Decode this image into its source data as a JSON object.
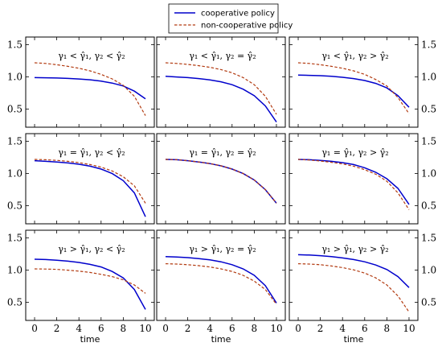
{
  "colors": {
    "cooperative": "#0000cc",
    "noncooperative": "#b23a10",
    "frame": "#000000"
  },
  "chart_data": {
    "type": "line",
    "layout": "3x3 grid, shared axes",
    "legend": {
      "placement": "top-center",
      "entries": [
        {
          "name": "cooperative policy",
          "style": "solid"
        },
        {
          "name": "non-cooperative policy",
          "style": "dashed"
        }
      ]
    },
    "xlabel": "time",
    "xlim": [
      -0.8,
      10.8
    ],
    "ylim": [
      0.22,
      1.62
    ],
    "x_ticks": [
      0,
      2,
      4,
      6,
      8,
      10
    ],
    "y_ticks": [
      0.5,
      1.0,
      1.5
    ],
    "y_tick_labels": [
      "0.5",
      "1.0",
      "1.5"
    ],
    "x": [
      0,
      1,
      2,
      3,
      4,
      5,
      6,
      7,
      8,
      9,
      10
    ],
    "panels": [
      {
        "title": "γ₁ < γ̂₁, γ₂ < γ̂₂",
        "cooperative": [
          0.99,
          0.988,
          0.984,
          0.978,
          0.969,
          0.956,
          0.935,
          0.905,
          0.86,
          0.78,
          0.66
        ],
        "noncooperative": [
          1.22,
          1.21,
          1.19,
          1.165,
          1.135,
          1.095,
          1.04,
          0.97,
          0.87,
          0.7,
          0.4
        ]
      },
      {
        "title": "γ₁ < γ̂₁, γ₂ = γ̂₂",
        "cooperative": [
          1.01,
          1.0,
          0.99,
          0.975,
          0.955,
          0.925,
          0.88,
          0.81,
          0.71,
          0.55,
          0.3
        ],
        "noncooperative": [
          1.22,
          1.21,
          1.195,
          1.175,
          1.15,
          1.115,
          1.065,
          0.99,
          0.88,
          0.7,
          0.42
        ]
      },
      {
        "title": "γ₁ < γ̂₁, γ₂ > γ̂₂",
        "cooperative": [
          1.03,
          1.025,
          1.02,
          1.01,
          0.995,
          0.975,
          0.945,
          0.9,
          0.83,
          0.71,
          0.53
        ],
        "noncooperative": [
          1.22,
          1.21,
          1.19,
          1.165,
          1.135,
          1.095,
          1.04,
          0.96,
          0.86,
          0.68,
          0.43
        ]
      },
      {
        "title": "γ₁ = γ̂₁, γ₂ < γ̂₂",
        "cooperative": [
          1.2,
          1.19,
          1.18,
          1.165,
          1.145,
          1.115,
          1.07,
          1.0,
          0.89,
          0.7,
          0.33
        ],
        "noncooperative": [
          1.22,
          1.215,
          1.205,
          1.19,
          1.17,
          1.14,
          1.1,
          1.04,
          0.95,
          0.81,
          0.54
        ]
      },
      {
        "title": "γ₁ = γ̂₁, γ₂ = γ̂₂",
        "cooperative": [
          1.22,
          1.215,
          1.2,
          1.18,
          1.155,
          1.12,
          1.07,
          1.0,
          0.9,
          0.75,
          0.54
        ],
        "noncooperative": [
          1.22,
          1.215,
          1.2,
          1.18,
          1.155,
          1.12,
          1.07,
          1.0,
          0.9,
          0.75,
          0.54
        ]
      },
      {
        "title": "γ₁ = γ̂₁, γ₂ > γ̂₂",
        "cooperative": [
          1.22,
          1.215,
          1.205,
          1.19,
          1.17,
          1.14,
          1.09,
          1.02,
          0.92,
          0.77,
          0.52
        ],
        "noncooperative": [
          1.22,
          1.21,
          1.195,
          1.175,
          1.15,
          1.115,
          1.06,
          0.99,
          0.88,
          0.7,
          0.44
        ]
      },
      {
        "title": "γ₁ > γ̂₁, γ₂ < γ̂₂",
        "cooperative": [
          1.17,
          1.165,
          1.155,
          1.14,
          1.12,
          1.09,
          1.05,
          0.98,
          0.88,
          0.7,
          0.39
        ],
        "noncooperative": [
          1.02,
          1.018,
          1.012,
          1.0,
          0.985,
          0.965,
          0.935,
          0.9,
          0.85,
          0.77,
          0.64
        ]
      },
      {
        "title": "γ₁ > γ̂₁, γ₂ = γ̂₂",
        "cooperative": [
          1.21,
          1.205,
          1.195,
          1.18,
          1.16,
          1.13,
          1.085,
          1.02,
          0.92,
          0.76,
          0.49
        ],
        "noncooperative": [
          1.1,
          1.095,
          1.085,
          1.07,
          1.05,
          1.02,
          0.98,
          0.92,
          0.83,
          0.7,
          0.47
        ]
      },
      {
        "title": "γ₁ > γ̂₁, γ₂ > γ̂₂",
        "cooperative": [
          1.24,
          1.235,
          1.225,
          1.21,
          1.19,
          1.165,
          1.13,
          1.08,
          1.01,
          0.9,
          0.73
        ],
        "noncooperative": [
          1.1,
          1.095,
          1.085,
          1.065,
          1.04,
          1.005,
          0.955,
          0.88,
          0.77,
          0.6,
          0.35
        ]
      }
    ]
  }
}
